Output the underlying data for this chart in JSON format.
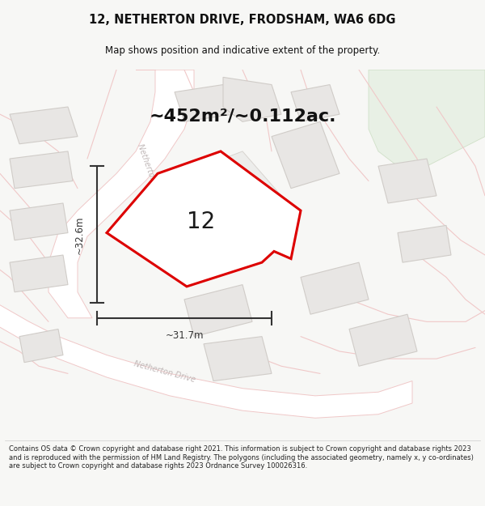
{
  "title": "12, NETHERTON DRIVE, FRODSHAM, WA6 6DG",
  "subtitle": "Map shows position and indicative extent of the property.",
  "area_text": "~452m²/~0.112ac.",
  "label_number": "12",
  "measure_width": "~31.7m",
  "measure_height": "~32.6m",
  "footer": "Contains OS data © Crown copyright and database right 2021. This information is subject to Crown copyright and database rights 2023 and is reproduced with the permission of HM Land Registry. The polygons (including the associated geometry, namely x, y co-ordinates) are subject to Crown copyright and database rights 2023 Ordnance Survey 100026316.",
  "bg_color": "#f7f7f5",
  "map_bg": "#ffffff",
  "road_fill": "#ffffff",
  "road_stroke": "#f0c8c8",
  "building_fill": "#e8e6e4",
  "building_stroke": "#d0ccc8",
  "property_stroke": "#dd0000",
  "property_fill": "#ffffff",
  "green_fill": "#e8f0e5",
  "green_stroke": "#d0e0c8",
  "title_color": "#111111",
  "measure_color": "#333333",
  "road_label_color": "#c0b8b8"
}
